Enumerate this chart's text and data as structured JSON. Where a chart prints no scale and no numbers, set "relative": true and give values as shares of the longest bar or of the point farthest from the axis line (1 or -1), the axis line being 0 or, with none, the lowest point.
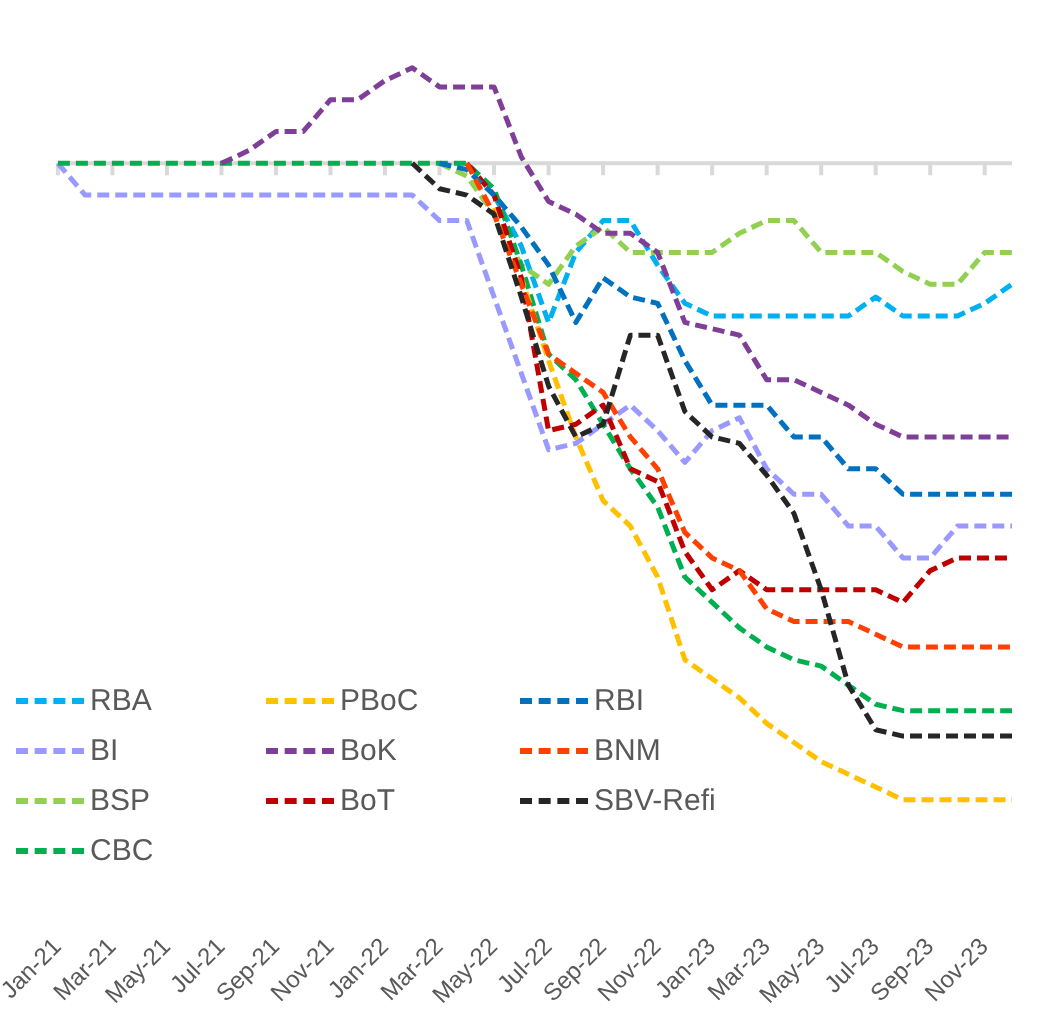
{
  "chart_data": {
    "type": "line",
    "relative": true,
    "grid": false,
    "legend": "bottom left",
    "marker": "none",
    "line_style": "dashed",
    "categories": [
      "Jan-21",
      null,
      "Mar-21",
      null,
      "May-21",
      null,
      "Jul-21",
      null,
      "Sep-21",
      null,
      "Nov-21",
      null,
      "Jan-22",
      null,
      "Mar-22",
      null,
      "May-22",
      null,
      "Jul-22",
      null,
      "Sep-22",
      null,
      "Nov-22",
      null,
      "Jan-23",
      null,
      "Mar-23",
      null,
      "May-23",
      null,
      "Jul-23",
      null,
      "Sep-23",
      null,
      "Nov-23",
      null
    ],
    "series": [
      {
        "name": "RBA",
        "color": "#00b0f0",
        "values": [
          null,
          null,
          null,
          null,
          null,
          null,
          null,
          null,
          null,
          null,
          null,
          null,
          null,
          null,
          null,
          null,
          -0.05,
          -0.13,
          -0.25,
          -0.14,
          -0.09,
          -0.09,
          -0.16,
          -0.22,
          -0.24,
          -0.24,
          -0.24,
          -0.24,
          -0.24,
          -0.24,
          -0.21,
          -0.24,
          -0.24,
          -0.24,
          -0.22,
          -0.19
        ]
      },
      {
        "name": "BI",
        "color": "#9999ff",
        "values": [
          0,
          -0.05,
          -0.05,
          -0.05,
          -0.05,
          -0.05,
          -0.05,
          -0.05,
          -0.05,
          -0.05,
          -0.05,
          -0.05,
          -0.05,
          -0.05,
          -0.09,
          -0.09,
          -0.21,
          -0.33,
          -0.45,
          -0.44,
          -0.41,
          -0.38,
          -0.42,
          -0.47,
          -0.42,
          -0.4,
          -0.48,
          -0.52,
          -0.52,
          -0.57,
          -0.57,
          -0.62,
          -0.62,
          -0.57,
          -0.57,
          -0.57
        ]
      },
      {
        "name": "BSP",
        "color": "#92d050",
        "values": [
          null,
          null,
          null,
          null,
          null,
          null,
          null,
          null,
          null,
          null,
          null,
          null,
          null,
          null,
          0,
          -0.02,
          -0.08,
          -0.16,
          -0.19,
          -0.13,
          -0.1,
          -0.14,
          -0.14,
          -0.14,
          -0.14,
          -0.11,
          -0.09,
          -0.09,
          -0.14,
          -0.14,
          -0.14,
          -0.17,
          -0.19,
          -0.19,
          -0.14,
          -0.14
        ]
      },
      {
        "name": "CBC",
        "color": "#00b050",
        "values": [
          0,
          0,
          0,
          0,
          0,
          0,
          0,
          0,
          0,
          0,
          0,
          0,
          0,
          0,
          0,
          0,
          -0.04,
          -0.16,
          -0.3,
          -0.34,
          -0.41,
          -0.48,
          -0.54,
          -0.65,
          -0.69,
          -0.73,
          -0.76,
          -0.78,
          -0.79,
          -0.82,
          -0.85,
          -0.86,
          -0.86,
          -0.86,
          -0.86,
          -0.86
        ]
      },
      {
        "name": "PBoC",
        "color": "#ffc000",
        "values": [
          null,
          null,
          null,
          null,
          null,
          null,
          null,
          null,
          null,
          null,
          null,
          null,
          null,
          null,
          null,
          null,
          -0.07,
          -0.18,
          -0.31,
          -0.43,
          -0.53,
          -0.57,
          -0.65,
          -0.78,
          -0.81,
          -0.84,
          -0.88,
          -0.91,
          -0.94,
          -0.96,
          -0.98,
          -1,
          -1,
          -1,
          -1,
          -1
        ]
      },
      {
        "name": "BoK",
        "color": "#7f3f98",
        "values": [
          null,
          null,
          null,
          null,
          null,
          null,
          0,
          0.02,
          0.05,
          0.05,
          0.1,
          0.1,
          0.13,
          0.15,
          0.12,
          0.12,
          0.12,
          0.01,
          -0.06,
          -0.08,
          -0.11,
          -0.11,
          -0.14,
          -0.25,
          -0.26,
          -0.27,
          -0.34,
          -0.34,
          -0.36,
          -0.38,
          -0.41,
          -0.43,
          -0.43,
          -0.43,
          -0.43,
          -0.43
        ]
      },
      {
        "name": "BoT",
        "color": "#c00000",
        "values": [
          null,
          null,
          null,
          null,
          null,
          null,
          null,
          null,
          null,
          null,
          null,
          null,
          null,
          null,
          null,
          0,
          -0.05,
          -0.18,
          -0.42,
          -0.41,
          -0.38,
          -0.48,
          -0.5,
          -0.61,
          -0.67,
          -0.64,
          -0.67,
          -0.67,
          -0.67,
          -0.67,
          -0.67,
          -0.69,
          -0.64,
          -0.62,
          -0.62,
          -0.62
        ]
      },
      {
        "name": "RBI",
        "color": "#0070c0",
        "values": [
          null,
          null,
          null,
          null,
          null,
          null,
          null,
          null,
          null,
          null,
          null,
          null,
          null,
          null,
          0,
          -0.01,
          -0.05,
          -0.1,
          -0.16,
          -0.25,
          -0.18,
          -0.21,
          -0.22,
          -0.31,
          -0.38,
          -0.38,
          -0.38,
          -0.43,
          -0.43,
          -0.48,
          -0.48,
          -0.52,
          -0.52,
          -0.52,
          -0.52,
          -0.52
        ]
      },
      {
        "name": "BNM",
        "color": "#ff4000",
        "values": [
          null,
          null,
          null,
          null,
          null,
          null,
          null,
          null,
          null,
          null,
          null,
          null,
          null,
          null,
          null,
          0,
          -0.08,
          -0.19,
          -0.3,
          -0.33,
          -0.36,
          -0.43,
          -0.48,
          -0.58,
          -0.62,
          -0.64,
          -0.7,
          -0.72,
          -0.72,
          -0.72,
          -0.74,
          -0.76,
          -0.76,
          -0.76,
          -0.76,
          -0.76
        ]
      },
      {
        "name": "SBV-Refi",
        "color": "#262626",
        "values": [
          null,
          null,
          null,
          null,
          null,
          null,
          null,
          null,
          null,
          null,
          null,
          null,
          null,
          0,
          -0.04,
          -0.05,
          -0.08,
          -0.21,
          -0.35,
          -0.43,
          -0.41,
          -0.27,
          -0.27,
          -0.39,
          -0.43,
          -0.44,
          -0.49,
          -0.55,
          -0.67,
          -0.82,
          -0.89,
          -0.9,
          -0.9,
          -0.9,
          -0.9,
          -0.9
        ]
      }
    ]
  }
}
